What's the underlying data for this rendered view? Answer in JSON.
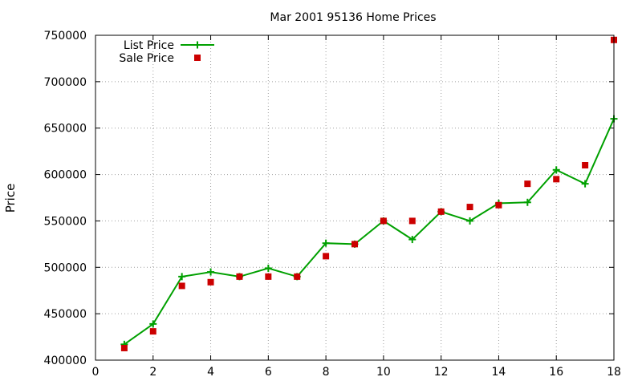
{
  "chart_data": {
    "type": "line",
    "title": "Mar 2001 95136 Home Prices",
    "xlabel": "",
    "ylabel": "Price",
    "xlim": [
      0,
      18
    ],
    "ylim": [
      400000,
      750000
    ],
    "x_ticks": [
      0,
      2,
      4,
      6,
      8,
      10,
      12,
      14,
      16,
      18
    ],
    "y_ticks": [
      400000,
      450000,
      500000,
      550000,
      600000,
      650000,
      700000,
      750000
    ],
    "grid": true,
    "legend_position": "top-left",
    "series": [
      {
        "name": "List Price",
        "style": "line-with-plus-markers",
        "color": "#00a000",
        "points": [
          [
            1,
            417000
          ],
          [
            2,
            439000
          ],
          [
            3,
            490000
          ],
          [
            4,
            495000
          ],
          [
            5,
            490000
          ],
          [
            6,
            499000
          ],
          [
            7,
            490000
          ],
          [
            8,
            526000
          ],
          [
            9,
            525000
          ],
          [
            10,
            550000
          ],
          [
            11,
            530000
          ],
          [
            12,
            560000
          ],
          [
            13,
            550000
          ],
          [
            14,
            569000
          ],
          [
            15,
            570000
          ],
          [
            16,
            605000
          ],
          [
            17,
            590000
          ],
          [
            18,
            660000
          ]
        ]
      },
      {
        "name": "Sale Price",
        "style": "square-markers",
        "color": "#cc0000",
        "points": [
          [
            1,
            413000
          ],
          [
            2,
            431000
          ],
          [
            3,
            480000
          ],
          [
            4,
            484000
          ],
          [
            5,
            490000
          ],
          [
            6,
            490000
          ],
          [
            7,
            490000
          ],
          [
            8,
            512000
          ],
          [
            9,
            525000
          ],
          [
            10,
            550000
          ],
          [
            11,
            550000
          ],
          [
            12,
            560000
          ],
          [
            13,
            565000
          ],
          [
            14,
            567000
          ],
          [
            15,
            590000
          ],
          [
            16,
            595000
          ],
          [
            17,
            610000
          ],
          [
            18,
            745000
          ]
        ]
      }
    ]
  }
}
